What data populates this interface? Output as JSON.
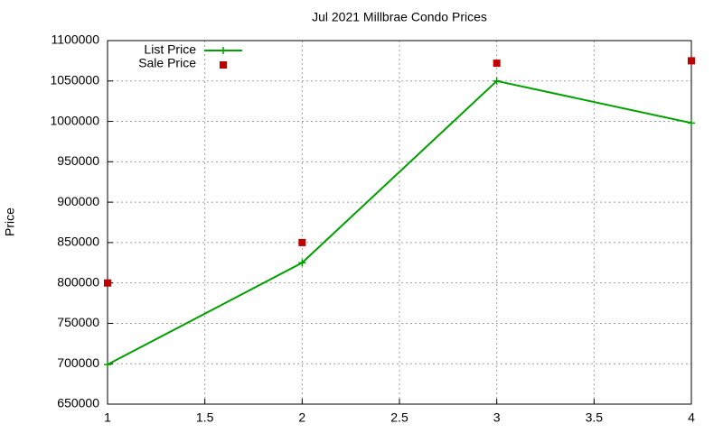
{
  "chart_data": {
    "type": "line",
    "title": "Jul 2021 Millbrae Condo Prices",
    "y_label": "Price",
    "x": [
      1,
      2,
      3,
      4
    ],
    "series": [
      {
        "name": "List Price",
        "color": "#00a000",
        "style": "linespoints",
        "values": [
          699000,
          825000,
          1050000,
          998000
        ]
      },
      {
        "name": "Sale Price",
        "color": "#c00000",
        "style": "points",
        "values": [
          800000,
          850000,
          1072000,
          1075000
        ]
      }
    ],
    "xlim": [
      1,
      4
    ],
    "xticks": [
      1,
      1.5,
      2,
      2.5,
      3,
      3.5,
      4
    ],
    "ylim": [
      650000,
      1100000
    ],
    "yticks": [
      650000,
      700000,
      750000,
      800000,
      850000,
      900000,
      950000,
      1000000,
      1050000,
      1100000
    ],
    "grid": true,
    "legend": "top-left"
  }
}
